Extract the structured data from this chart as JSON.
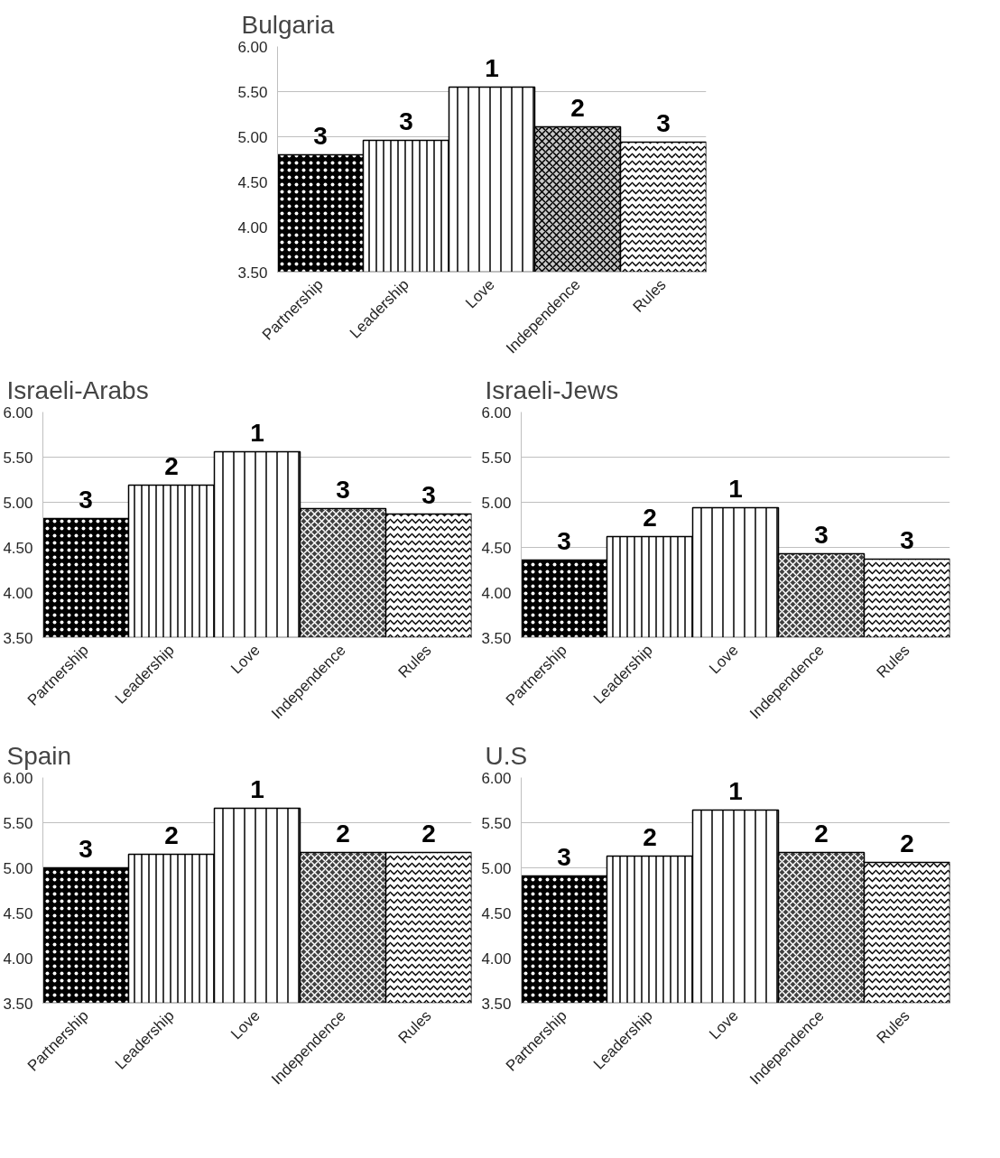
{
  "chart_data": [
    {
      "type": "bar",
      "title": "Bulgaria",
      "categories": [
        "Partnership",
        "Leadership",
        "Love",
        "Independence",
        "Rules"
      ],
      "values": [
        4.8,
        4.96,
        5.55,
        5.11,
        4.94
      ],
      "annotations": [
        {
          "text": "3",
          "x": "Partnership",
          "y": 4.8
        },
        {
          "text": "3",
          "x": "Leadership",
          "y": 4.96
        },
        {
          "text": "1",
          "x": "Love",
          "y": 5.55
        },
        {
          "text": "2",
          "x": "Independence",
          "y": 5.11
        },
        {
          "text": "3",
          "x": "Rules",
          "y": 4.94
        }
      ],
      "colors": [
        "#000000",
        "#ffffff",
        "#ffffff",
        "#c8c8c8",
        "#ffffff"
      ],
      "ylim": [
        3.5,
        6.0
      ],
      "yticks": [
        {
          "value": 3.5,
          "label": "3.50"
        },
        {
          "value": 4.0,
          "label": "4.00"
        },
        {
          "value": 4.5,
          "label": "4.50"
        },
        {
          "value": 5.0,
          "label": "5.00"
        },
        {
          "value": 5.5,
          "label": "5.50"
        },
        {
          "value": 6.0,
          "label": "6.00"
        }
      ],
      "grid": "y"
    },
    {
      "type": "bar",
      "title": "Israeli-Arabs",
      "categories": [
        "Partnership",
        "Leadership",
        "Love",
        "Independence",
        "Rules"
      ],
      "values": [
        4.82,
        5.19,
        5.56,
        4.93,
        4.87
      ],
      "annotations": [
        {
          "text": "3",
          "x": "Partnership",
          "y": 4.82
        },
        {
          "text": "2",
          "x": "Leadership",
          "y": 5.19
        },
        {
          "text": "1",
          "x": "Love",
          "y": 5.56
        },
        {
          "text": "3",
          "x": "Independence",
          "y": 4.93
        },
        {
          "text": "3",
          "x": "Rules",
          "y": 4.87
        }
      ],
      "colors": [
        "#000000",
        "#ffffff",
        "#ffffff",
        "#404040",
        "#ffffff"
      ],
      "ylim": [
        3.5,
        6.0
      ],
      "yticks": [
        {
          "value": 3.5,
          "label": "3.50"
        },
        {
          "value": 4.0,
          "label": "4.00"
        },
        {
          "value": 4.5,
          "label": "4.50"
        },
        {
          "value": 5.0,
          "label": "5.00"
        },
        {
          "value": 5.5,
          "label": "5.50"
        },
        {
          "value": 6.0,
          "label": "6.00"
        }
      ],
      "grid": "y"
    },
    {
      "type": "bar",
      "title": "Israeli-Jews",
      "categories": [
        "Partnership",
        "Leadership",
        "Love",
        "Independence",
        "Rules"
      ],
      "values": [
        4.36,
        4.62,
        4.94,
        4.43,
        4.37
      ],
      "annotations": [
        {
          "text": "3",
          "x": "Partnership",
          "y": 4.36
        },
        {
          "text": "2",
          "x": "Leadership",
          "y": 4.62
        },
        {
          "text": "1",
          "x": "Love",
          "y": 4.94
        },
        {
          "text": "3",
          "x": "Independence",
          "y": 4.43
        },
        {
          "text": "3",
          "x": "Rules",
          "y": 4.37
        }
      ],
      "colors": [
        "#000000",
        "#ffffff",
        "#ffffff",
        "#404040",
        "#ffffff"
      ],
      "ylim": [
        3.5,
        6.0
      ],
      "yticks": [
        {
          "value": 3.5,
          "label": "3.50"
        },
        {
          "value": 4.0,
          "label": "4.00"
        },
        {
          "value": 4.5,
          "label": "4.50"
        },
        {
          "value": 5.0,
          "label": "5.00"
        },
        {
          "value": 5.5,
          "label": "5.50"
        },
        {
          "value": 6.0,
          "label": "6.00"
        }
      ],
      "grid": "y"
    },
    {
      "type": "bar",
      "title": "Spain",
      "categories": [
        "Partnership",
        "Leadership",
        "Love",
        "Independence",
        "Rules"
      ],
      "values": [
        5.0,
        5.15,
        5.66,
        5.17,
        5.17
      ],
      "annotations": [
        {
          "text": "3",
          "x": "Partnership",
          "y": 5.0
        },
        {
          "text": "2",
          "x": "Leadership",
          "y": 5.15
        },
        {
          "text": "1",
          "x": "Love",
          "y": 5.66
        },
        {
          "text": "2",
          "x": "Independence",
          "y": 5.17
        },
        {
          "text": "2",
          "x": "Rules",
          "y": 5.17
        }
      ],
      "colors": [
        "#000000",
        "#ffffff",
        "#ffffff",
        "#404040",
        "#ffffff"
      ],
      "ylim": [
        3.5,
        6.0
      ],
      "yticks": [
        {
          "value": 3.5,
          "label": "3.50"
        },
        {
          "value": 4.0,
          "label": "4.00"
        },
        {
          "value": 4.5,
          "label": "4.50"
        },
        {
          "value": 5.0,
          "label": "5.00"
        },
        {
          "value": 5.5,
          "label": "5.50"
        },
        {
          "value": 6.0,
          "label": "6.00"
        }
      ],
      "grid": "y"
    },
    {
      "type": "bar",
      "title": "U.S",
      "categories": [
        "Partnership",
        "Leadership",
        "Love",
        "Independence",
        "Rules"
      ],
      "values": [
        4.91,
        5.13,
        5.64,
        5.17,
        5.06
      ],
      "annotations": [
        {
          "text": "3",
          "x": "Partnership",
          "y": 4.91
        },
        {
          "text": "2",
          "x": "Leadership",
          "y": 5.13
        },
        {
          "text": "1",
          "x": "Love",
          "y": 5.64
        },
        {
          "text": "2",
          "x": "Independence",
          "y": 5.17
        },
        {
          "text": "2",
          "x": "Rules",
          "y": 5.06
        }
      ],
      "colors": [
        "#000000",
        "#ffffff",
        "#ffffff",
        "#404040",
        "#ffffff"
      ],
      "ylim": [
        3.5,
        6.0
      ],
      "yticks": [
        {
          "value": 3.5,
          "label": "3.50"
        },
        {
          "value": 4.0,
          "label": "4.00"
        },
        {
          "value": 4.5,
          "label": "4.50"
        },
        {
          "value": 5.0,
          "label": "5.00"
        },
        {
          "value": 5.5,
          "label": "5.50"
        },
        {
          "value": 6.0,
          "label": "6.00"
        }
      ],
      "grid": "y"
    }
  ]
}
